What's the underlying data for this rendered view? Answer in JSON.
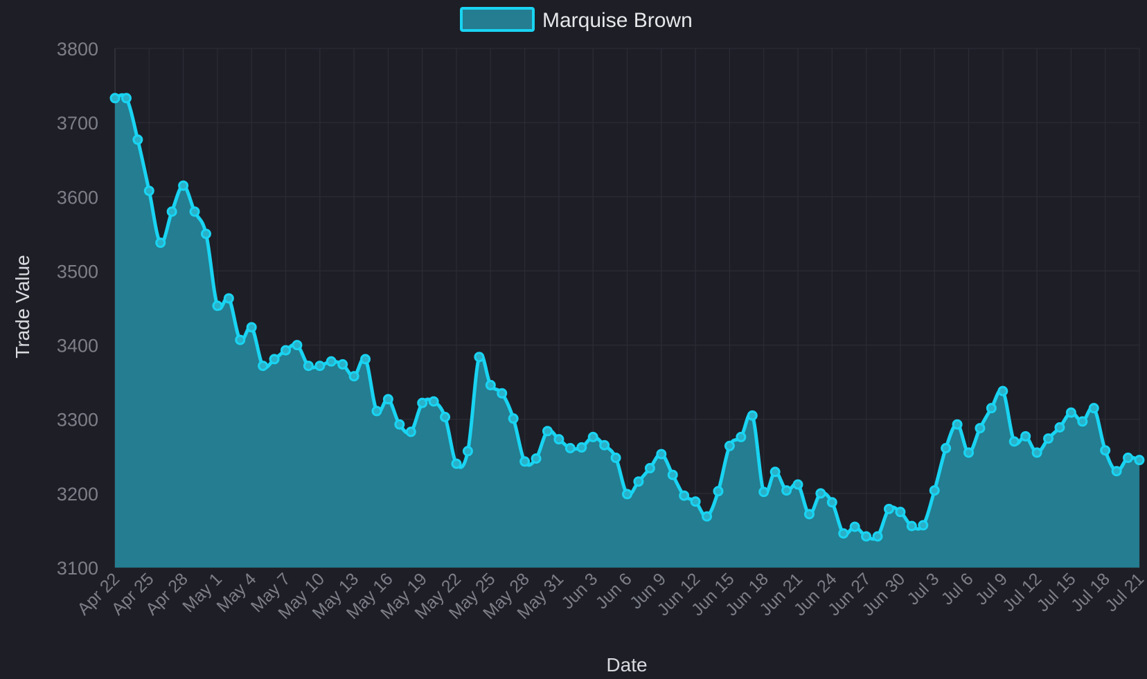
{
  "colors": {
    "background": "#1e1e26",
    "line": "#19d4f2",
    "fill": "#247d90",
    "grid": "#2b2c35",
    "tick_text": "#7d7f88",
    "title_text": "#d9dadf"
  },
  "chart_data": {
    "type": "area",
    "xlabel": "Date",
    "ylabel": "Trade Value",
    "ylim": [
      3100,
      3800
    ],
    "yticks": [
      3100,
      3200,
      3300,
      3400,
      3500,
      3600,
      3700,
      3800
    ],
    "xticks": [
      "Apr 22",
      "Apr 25",
      "Apr 28",
      "May 1",
      "May 4",
      "May 7",
      "May 10",
      "May 13",
      "May 16",
      "May 19",
      "May 22",
      "May 25",
      "May 28",
      "May 31",
      "Jun 3",
      "Jun 6",
      "Jun 9",
      "Jun 12",
      "Jun 15",
      "Jun 18",
      "Jun 21",
      "Jun 24",
      "Jun 27",
      "Jun 30",
      "Jul 3",
      "Jul 6",
      "Jul 9",
      "Jul 12",
      "Jul 15",
      "Jul 18",
      "Jul 21"
    ],
    "legend_position": "top-center",
    "grid": true,
    "series": [
      {
        "name": "Marquise Brown",
        "x": [
          "Apr 22",
          "Apr 23",
          "Apr 24",
          "Apr 25",
          "Apr 26",
          "Apr 27",
          "Apr 28",
          "Apr 29",
          "Apr 30",
          "May 1",
          "May 2",
          "May 3",
          "May 4",
          "May 5",
          "May 6",
          "May 7",
          "May 8",
          "May 9",
          "May 10",
          "May 11",
          "May 12",
          "May 13",
          "May 14",
          "May 15",
          "May 16",
          "May 17",
          "May 18",
          "May 19",
          "May 20",
          "May 21",
          "May 22",
          "May 23",
          "May 24",
          "May 25",
          "May 26",
          "May 27",
          "May 28",
          "May 29",
          "May 30",
          "May 31",
          "Jun 1",
          "Jun 2",
          "Jun 3",
          "Jun 4",
          "Jun 5",
          "Jun 6",
          "Jun 7",
          "Jun 8",
          "Jun 9",
          "Jun 10",
          "Jun 11",
          "Jun 12",
          "Jun 13",
          "Jun 14",
          "Jun 15",
          "Jun 16",
          "Jun 17",
          "Jun 18",
          "Jun 19",
          "Jun 20",
          "Jun 21",
          "Jun 22",
          "Jun 23",
          "Jun 24",
          "Jun 25",
          "Jun 26",
          "Jun 27",
          "Jun 28",
          "Jun 29",
          "Jun 30",
          "Jul 1",
          "Jul 2",
          "Jul 3",
          "Jul 4",
          "Jul 5",
          "Jul 6",
          "Jul 7",
          "Jul 8",
          "Jul 9",
          "Jul 10",
          "Jul 11",
          "Jul 12",
          "Jul 13",
          "Jul 14",
          "Jul 15",
          "Jul 16",
          "Jul 17",
          "Jul 18",
          "Jul 19",
          "Jul 20",
          "Jul 21"
        ],
        "values": [
          3733,
          3733,
          3677,
          3608,
          3538,
          3580,
          3615,
          3580,
          3550,
          3453,
          3463,
          3407,
          3424,
          3372,
          3381,
          3393,
          3400,
          3372,
          3372,
          3378,
          3374,
          3358,
          3381,
          3311,
          3327,
          3293,
          3283,
          3322,
          3324,
          3303,
          3240,
          3257,
          3384,
          3346,
          3335,
          3301,
          3243,
          3247,
          3284,
          3273,
          3261,
          3262,
          3276,
          3265,
          3248,
          3199,
          3216,
          3234,
          3253,
          3225,
          3197,
          3189,
          3169,
          3203,
          3264,
          3276,
          3305,
          3202,
          3229,
          3204,
          3212,
          3172,
          3200,
          3188,
          3146,
          3155,
          3142,
          3142,
          3179,
          3175,
          3156,
          3157,
          3204,
          3261,
          3293,
          3255,
          3288,
          3315,
          3338,
          3270,
          3277,
          3255,
          3274,
          3289,
          3309,
          3297,
          3315,
          3258,
          3230,
          3248,
          3245
        ]
      }
    ]
  }
}
